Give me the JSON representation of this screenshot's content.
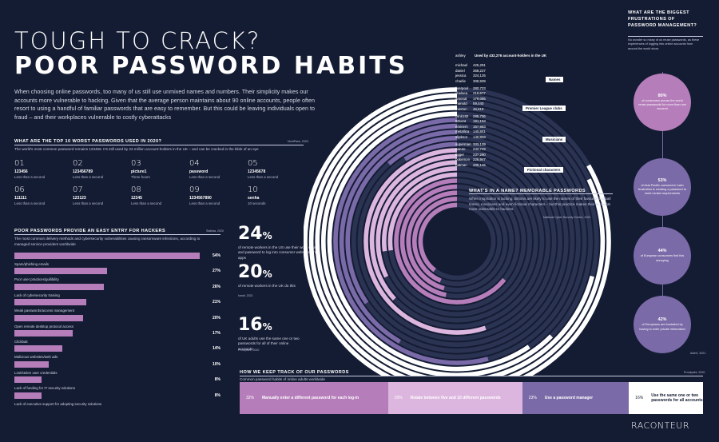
{
  "header": {
    "title_line1": "TOUGH TO CRACK?",
    "title_line2": "POOR PASSWORD HABITS",
    "intro": "When choosing online passwords, too many of us still use unmixed names and numbers. Their simplicity makes our accounts more vulnerable to hacking. Given that the average person maintains about 90 online accounts, people often resort to using a handful of familiar passwords that are easy to remember. But this could be leaving individuals open to fraud – and their workplaces vulnerable to costly cyberattacks"
  },
  "worst_passwords": {
    "heading": "WHAT ARE THE TOP 10 WORST PASSWORDS USED IN 2020?",
    "source": "NordPass, 2020",
    "subtitle": "The world's most common password remains 123456. It's still used by 23 million account-holders in the UK – and can be cracked in the blink of an eye",
    "items": [
      {
        "rank": "01",
        "password": "123456",
        "time": "Less than a second"
      },
      {
        "rank": "02",
        "password": "123456789",
        "time": "Less than a second"
      },
      {
        "rank": "03",
        "password": "picture1",
        "time": "Three hours"
      },
      {
        "rank": "04",
        "password": "password",
        "time": "Less than a second"
      },
      {
        "rank": "05",
        "password": "12345678",
        "time": "Less than a second"
      },
      {
        "rank": "06",
        "password": "111111",
        "time": "Less than a second"
      },
      {
        "rank": "07",
        "password": "123123",
        "time": "Less than a second"
      },
      {
        "rank": "08",
        "password": "12345",
        "time": "Less than a second"
      },
      {
        "rank": "09",
        "password": "1234567890",
        "time": "Less than a second"
      },
      {
        "rank": "10",
        "password": "senha",
        "time": "10 seconds"
      }
    ]
  },
  "entry_points": {
    "heading": "POOR PASSWORDS PROVIDE AN EASY ENTRY FOR HACKERS",
    "source": "Statista, 2020",
    "subtitle": "The most common delivery methods and cybersecurity vulnerabilities causing ransomware infections, according to managed service providers worldwide"
  },
  "remote_stats": {
    "stat1_value": "24",
    "stat1_pct": "%",
    "stat1_text": "of remote workers in the US use their work email and password to log into consumer websites and apps",
    "stat2_value": "20",
    "stat2_pct": "%",
    "stat2_text": "of remote workers in the UK do this",
    "stat2_source": "Ivanti, 2021",
    "stat3_value": "16",
    "stat3_pct": "%",
    "stat3_text": "of UK adults use the same one or two passwords for all of their online accounts",
    "stat3_source": "Proofpoint, 2020"
  },
  "name_section": {
    "heading": "WHAT'S IN A NAME? MEMORABLE PASSWORDS",
    "text": "When inspiration is lacking, Britons are likely to use the names of their favourite football teams, musicians and even fictional characters – but this practice makes their accounts more vulnerable to hackers",
    "source": "National Cyber Security Centre, 2021",
    "chart_heading": "Used by 432,276 account-holders in the UK",
    "categories": [
      "Names",
      "Premier League clubs",
      "Musicians",
      "Fictional characters"
    ]
  },
  "frustrations": {
    "heading": "WHAT ARE THE BIGGEST FRUSTRATIONS OF PASSWORD MANAGEMENT?",
    "subtitle": "No wonder so many of us reuse passwords, as these experiences of logging into online accounts from around the world show",
    "items": [
      {
        "value": "80%",
        "text": "of consumers across the world reuse passwords for more than one account"
      },
      {
        "value": "53%",
        "text": "of Asia Pacific consumers' main frustration is creating a password to meet certain requirements"
      },
      {
        "value": "44%",
        "text": "of European consumers find this annoying"
      },
      {
        "value": "42%",
        "text": "of Europeans are frustrated by having to enter private information"
      }
    ],
    "source": "Auth0, 2021"
  },
  "track": {
    "heading": "HOW WE KEEP TRACK OF OUR PASSWORDS",
    "source": "Proofpoint, 2020",
    "subtitle": "Common password habits of online adults worldwide",
    "segments": [
      {
        "pct": "32%",
        "label": "Manually enter a different password for each log-in",
        "color": "#b57dba"
      },
      {
        "pct": "29%",
        "label": "Rotate between five and 10 different passwords",
        "color": "#dcb6de"
      },
      {
        "pct": "23%",
        "label": "Use a password manager",
        "color": "#7a6aa8"
      },
      {
        "pct": "16%",
        "label": "Use the same one or two passwords for all accounts",
        "color": "#ffffff"
      }
    ]
  },
  "logo": "RACONTEUR",
  "chart_data": [
    {
      "type": "bar",
      "title": "POOR PASSWORDS PROVIDE AN EASY ENTRY FOR HACKERS",
      "categories": [
        "Spam/phishing emails",
        "Poor user practices/gullibility",
        "Lack of cybersecurity training",
        "Weak passwords/access management",
        "Open remote desktop protocol access",
        "Clickbait",
        "Malicious websites/web ads",
        "Lost/stolen user credentials",
        "Lack of funding for IT security solutions",
        "Lack of executive support for adopting security solutions"
      ],
      "values": [
        54,
        27,
        26,
        21,
        20,
        17,
        14,
        10,
        8,
        8
      ],
      "value_labels": [
        "54%",
        "27%",
        "26%",
        "21%",
        "20%",
        "17%",
        "14%",
        "10%",
        "8%",
        "8%"
      ],
      "xlim": [
        0,
        54
      ]
    },
    {
      "type": "bar",
      "title": "Used by 432,276 account-holders in the UK",
      "categories": [
        "ashley",
        "michael",
        "daniel",
        "jessica",
        "charlie",
        "liverpool",
        "chelsea",
        "arsenal",
        "manutd",
        "everton",
        "blink182",
        "50cent",
        "eminem",
        "metallica",
        "slipknot",
        "superman",
        "naruto",
        "tigger",
        "pokemon",
        "batman"
      ],
      "values": [
        432276,
        425291,
        368227,
        324125,
        308939,
        280723,
        216677,
        179095,
        59440,
        46619,
        285706,
        191153,
        167983,
        140841,
        140833,
        333139,
        242749,
        237290,
        226947,
        205145
      ],
      "value_labels": [
        "432,276",
        "425,291",
        "368,227",
        "324,125",
        "308,939",
        "280,723",
        "216,677",
        "179,095",
        "59,440",
        "46,619",
        "285,706",
        "191,153",
        "167,983",
        "140,841",
        "140,833",
        "333,139",
        "242,749",
        "237,290",
        "226,947",
        "205,145"
      ],
      "groups": [
        "Names",
        "Names",
        "Names",
        "Names",
        "Names",
        "Premier League clubs",
        "Premier League clubs",
        "Premier League clubs",
        "Premier League clubs",
        "Premier League clubs",
        "Musicians",
        "Musicians",
        "Musicians",
        "Musicians",
        "Musicians",
        "Fictional characters",
        "Fictional characters",
        "Fictional characters",
        "Fictional characters",
        "Fictional characters"
      ],
      "colors": {
        "Names": "#ffffff",
        "Premier League clubs": "#7a6aa8",
        "Musicians": "#dcb6de",
        "Fictional characters": "#b57dba"
      }
    }
  ]
}
